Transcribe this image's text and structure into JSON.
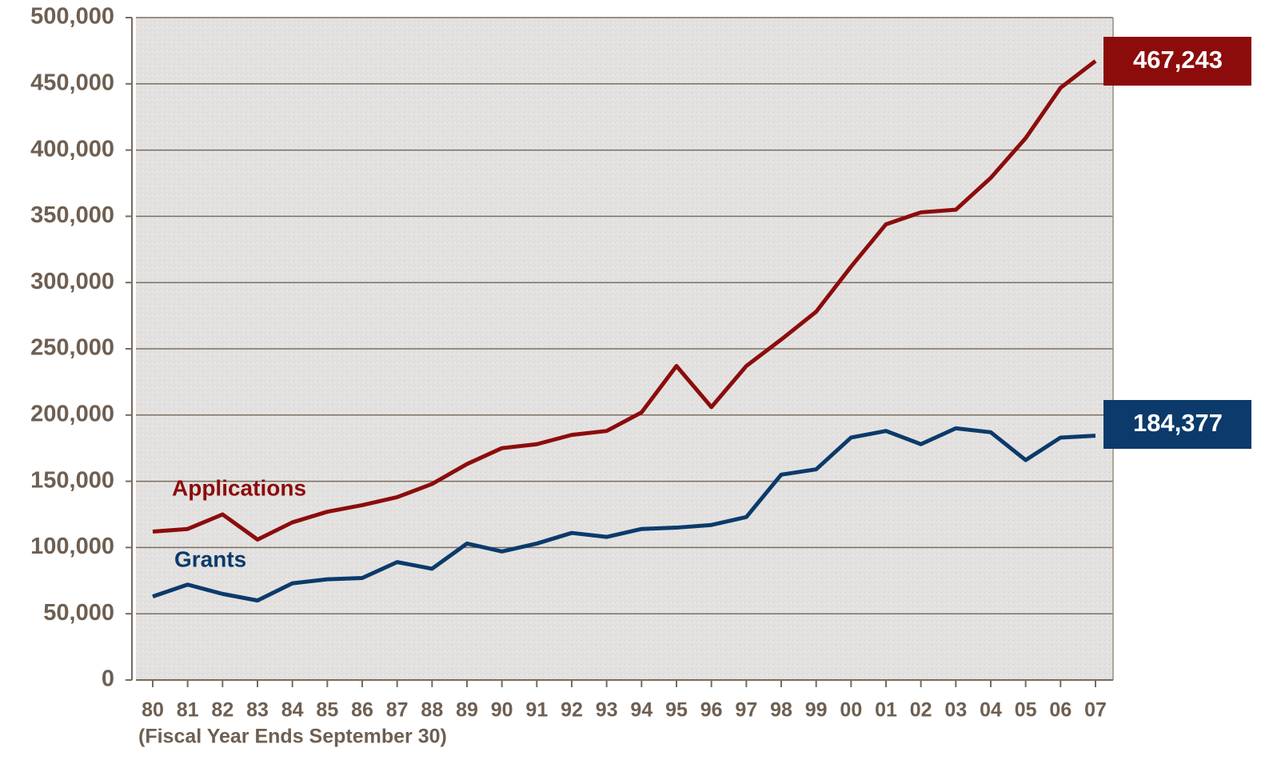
{
  "chart_data": {
    "type": "line",
    "x_label": "(Fiscal Year Ends September 30)",
    "categories": [
      "80",
      "81",
      "82",
      "83",
      "84",
      "85",
      "86",
      "87",
      "88",
      "89",
      "90",
      "91",
      "92",
      "93",
      "94",
      "95",
      "96",
      "97",
      "98",
      "99",
      "00",
      "01",
      "02",
      "03",
      "04",
      "05",
      "06",
      "07"
    ],
    "series": [
      {
        "name": "Applications",
        "color": "#8c0c0c",
        "values": [
          112000,
          114000,
          125000,
          106000,
          119000,
          127000,
          132000,
          138000,
          148000,
          163000,
          175000,
          178000,
          185000,
          188000,
          202000,
          237000,
          206000,
          237000,
          257000,
          278000,
          312000,
          344000,
          353000,
          355000,
          379000,
          409000,
          447000,
          467243
        ],
        "value_labels": [
          null,
          null,
          null,
          null,
          null,
          null,
          null,
          null,
          null,
          null,
          null,
          null,
          null,
          null,
          null,
          null,
          null,
          null,
          null,
          null,
          null,
          null,
          null,
          null,
          null,
          null,
          null,
          "467,243"
        ]
      },
      {
        "name": "Grants",
        "color": "#0b3a6b",
        "values": [
          63000,
          72000,
          65000,
          60000,
          73000,
          76000,
          77000,
          89000,
          84000,
          103000,
          97000,
          103000,
          111000,
          108000,
          114000,
          115000,
          117000,
          123000,
          155000,
          159000,
          183000,
          188000,
          178000,
          190000,
          187000,
          166000,
          183000,
          184377
        ],
        "value_labels": [
          null,
          null,
          null,
          null,
          null,
          null,
          null,
          null,
          null,
          null,
          null,
          null,
          null,
          null,
          null,
          null,
          null,
          null,
          null,
          null,
          null,
          null,
          null,
          null,
          null,
          null,
          null,
          "184,377"
        ]
      }
    ],
    "ylim": [
      0,
      500000
    ],
    "yticks": [
      0,
      {
        "value": 50000,
        "label": "50,000"
      },
      {
        "value": 100000,
        "label": "100,000"
      },
      {
        "value": 150000,
        "label": "150,000"
      },
      {
        "value": 200000,
        "label": "200,000"
      },
      {
        "value": 250000,
        "label": "250,000"
      },
      {
        "value": 300000,
        "label": "300,000"
      },
      {
        "value": 350000,
        "label": "350,000"
      },
      {
        "value": 400000,
        "label": "400,000"
      },
      {
        "value": 450000,
        "label": "450,000"
      },
      {
        "value": 500000,
        "label": "500,000"
      }
    ],
    "grid": true
  }
}
